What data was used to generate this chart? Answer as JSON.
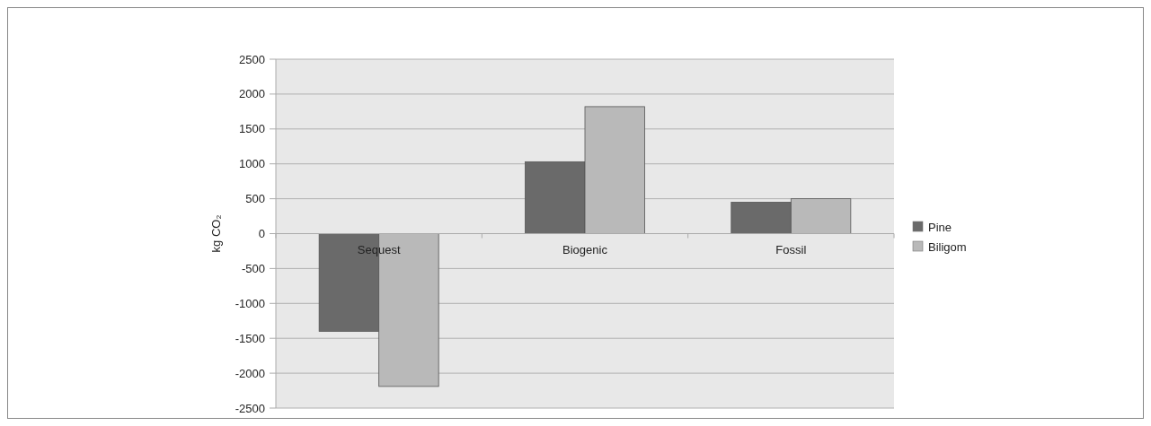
{
  "chart_data": {
    "type": "bar",
    "ylabel": "kg CO₂",
    "categories": [
      "Sequest",
      "Biogenic",
      "Fossil"
    ],
    "series": [
      {
        "name": "Pine",
        "color": "#6a6a6a",
        "values": [
          -1400,
          1030,
          450
        ]
      },
      {
        "name": "Biligom",
        "color": "#b9b9b9",
        "values": [
          -2190,
          1820,
          500
        ]
      }
    ],
    "ylim": [
      -2500,
      2500
    ],
    "yticks": [
      -2500,
      -2000,
      -1500,
      -1000,
      -500,
      0,
      500,
      1000,
      1500,
      2000,
      2500
    ],
    "grid": "y",
    "legend": "right"
  }
}
